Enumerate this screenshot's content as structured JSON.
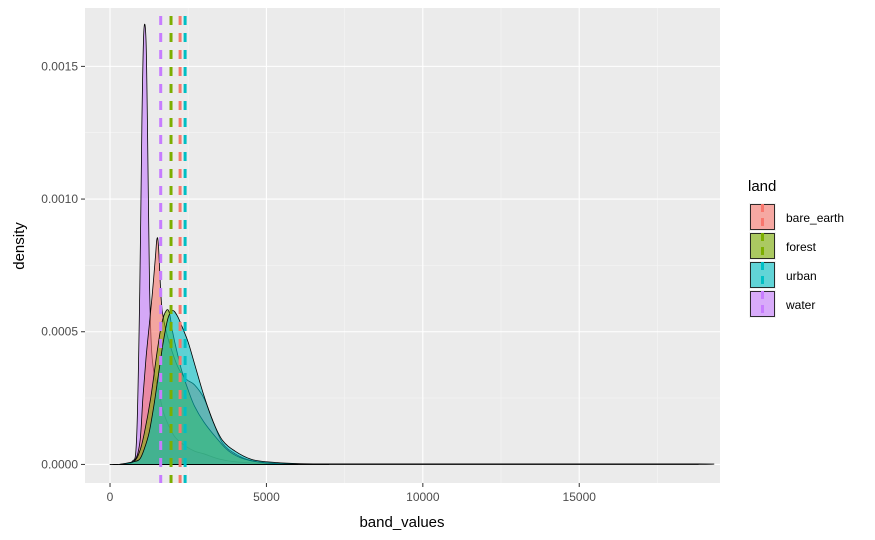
{
  "chart_data": {
    "type": "area",
    "subtype": "density",
    "title": "",
    "xlabel": "band_values",
    "ylabel": "density",
    "xlim": [
      -800,
      19500
    ],
    "ylim": [
      -7e-05,
      0.00172
    ],
    "x_ticks": [
      0,
      5000,
      10000,
      15000
    ],
    "x_tick_labels": [
      "0",
      "5000",
      "10000",
      "15000"
    ],
    "y_ticks": [
      0,
      0.0005,
      0.001,
      0.0015
    ],
    "y_tick_labels": [
      "0.0000",
      "0.0005",
      "0.0010",
      "0.0015"
    ],
    "grid": true,
    "fill_alpha": 0.6,
    "legend": {
      "title": "land",
      "position": "right",
      "labels": [
        "bare_earth",
        "forest",
        "urban",
        "water"
      ]
    },
    "series": [
      {
        "name": "water",
        "color": "#C77CFF",
        "mean_line_x": 1620,
        "points": [
          [
            0,
            0
          ],
          [
            300,
            0
          ],
          [
            700,
            1e-05
          ],
          [
            850,
            0.0001
          ],
          [
            950,
            0.00065
          ],
          [
            1020,
            0.0013
          ],
          [
            1080,
            0.00163
          ],
          [
            1150,
            0.0016
          ],
          [
            1200,
            0.00125
          ],
          [
            1260,
            0.0007
          ],
          [
            1320,
            0.00045
          ],
          [
            1400,
            0.00035
          ],
          [
            1550,
            0.00028
          ],
          [
            1700,
            0.0002
          ],
          [
            1900,
            0.00014
          ],
          [
            2100,
            0.0001
          ],
          [
            2400,
            7e-05
          ],
          [
            2700,
            5e-05
          ],
          [
            3000,
            4e-05
          ],
          [
            3500,
            2e-05
          ],
          [
            4000,
            1e-05
          ],
          [
            5000,
            3e-06
          ],
          [
            6000,
            0
          ]
        ]
      },
      {
        "name": "bare_earth",
        "color": "#F8766D",
        "mean_line_x": 2240,
        "points": [
          [
            300,
            0
          ],
          [
            750,
            1e-05
          ],
          [
            950,
            8e-05
          ],
          [
            1050,
            0.00025
          ],
          [
            1150,
            0.0004
          ],
          [
            1250,
            0.00052
          ],
          [
            1350,
            0.00064
          ],
          [
            1450,
            0.00078
          ],
          [
            1500,
            0.00085
          ],
          [
            1550,
            0.00082
          ],
          [
            1650,
            0.0006
          ],
          [
            1800,
            0.0005
          ],
          [
            2000,
            0.00042
          ],
          [
            2200,
            0.00036
          ],
          [
            2450,
            0.00032
          ],
          [
            2700,
            0.0003
          ],
          [
            3000,
            0.00025
          ],
          [
            3300,
            0.00016
          ],
          [
            3600,
            8e-05
          ],
          [
            4000,
            4e-05
          ],
          [
            4500,
            1.5e-05
          ],
          [
            5200,
            5e-06
          ],
          [
            6200,
            2e-06
          ],
          [
            7000,
            0
          ]
        ]
      },
      {
        "name": "forest",
        "color": "#7CAE00",
        "mean_line_x": 1950,
        "points": [
          [
            300,
            0
          ],
          [
            750,
            1e-05
          ],
          [
            950,
            5e-05
          ],
          [
            1100,
            0.00012
          ],
          [
            1300,
            0.00025
          ],
          [
            1500,
            0.00042
          ],
          [
            1650,
            0.00053
          ],
          [
            1800,
            0.00058
          ],
          [
            1900,
            0.00057
          ],
          [
            2000,
            0.0005
          ],
          [
            2150,
            0.00042
          ],
          [
            2300,
            0.00035
          ],
          [
            2500,
            0.00028
          ],
          [
            2700,
            0.00022
          ],
          [
            3000,
            0.00016
          ],
          [
            3400,
            0.0001
          ],
          [
            3800,
            5e-05
          ],
          [
            4300,
            2e-05
          ],
          [
            5000,
            5e-06
          ],
          [
            6000,
            0
          ]
        ]
      },
      {
        "name": "urban",
        "color": "#00BFC4",
        "mean_line_x": 2400,
        "points": [
          [
            300,
            0
          ],
          [
            750,
            1e-05
          ],
          [
            950,
            2e-05
          ],
          [
            1100,
            6e-05
          ],
          [
            1250,
            0.00012
          ],
          [
            1400,
            0.00022
          ],
          [
            1550,
            0.00034
          ],
          [
            1700,
            0.00046
          ],
          [
            1850,
            0.00055
          ],
          [
            2000,
            0.00058
          ],
          [
            2150,
            0.00056
          ],
          [
            2300,
            0.00052
          ],
          [
            2500,
            0.00046
          ],
          [
            2700,
            0.00038
          ],
          [
            3000,
            0.00026
          ],
          [
            3300,
            0.00016
          ],
          [
            3600,
            9e-05
          ],
          [
            4000,
            5e-05
          ],
          [
            4500,
            2e-05
          ],
          [
            5000,
            1e-05
          ],
          [
            6000,
            3e-06
          ],
          [
            8000,
            2e-06
          ],
          [
            12000,
            2e-06
          ],
          [
            18800,
            2e-06
          ],
          [
            18810,
            0
          ]
        ]
      }
    ]
  }
}
